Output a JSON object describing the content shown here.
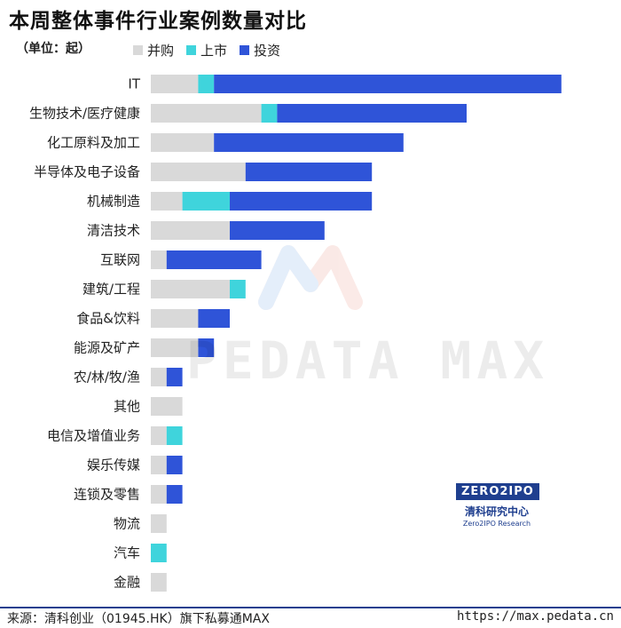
{
  "title": "本周整体事件行业案例数量对比",
  "unit_label": "（单位：起）",
  "colors": {
    "mna": "#d9d9d9",
    "ipo": "#3fd4dc",
    "investment": "#2f54d8"
  },
  "legend": [
    {
      "name": "并购",
      "color": "#d9d9d9"
    },
    {
      "name": "上市",
      "color": "#3fd4dc"
    },
    {
      "name": "投资",
      "color": "#2f54d8"
    }
  ],
  "chart_data": {
    "type": "bar",
    "orientation": "horizontal",
    "stacked": true,
    "title": "本周整体事件行业案例数量对比",
    "unit": "（单位：起）",
    "categories": [
      "IT",
      "生物技术/医疗健康",
      "化工原料及加工",
      "半导体及电子设备",
      "机械制造",
      "清洁技术",
      "互联网",
      "建筑/工程",
      "食品&饮料",
      "能源及矿产",
      "农/林/牧/渔",
      "其他",
      "电信及增值业务",
      "娱乐传媒",
      "连锁及零售",
      "物流",
      "汽车",
      "金融"
    ],
    "series": [
      {
        "name": "并购",
        "values": [
          3,
          7,
          4,
          6,
          2,
          5,
          1,
          5,
          3,
          3,
          1,
          2,
          1,
          1,
          1,
          1,
          0,
          1
        ]
      },
      {
        "name": "上市",
        "values": [
          1,
          1,
          0,
          0,
          3,
          0,
          0,
          1,
          0,
          0,
          0,
          0,
          1,
          0,
          0,
          0,
          1,
          0
        ]
      },
      {
        "name": "投资",
        "values": [
          22,
          12,
          12,
          8,
          9,
          6,
          6,
          0,
          2,
          1,
          1,
          0,
          0,
          1,
          1,
          0,
          0,
          0
        ]
      }
    ],
    "grid": false,
    "legend_position": "top"
  },
  "watermark": "PEDATA MAX",
  "logo": {
    "mark": "ZERO2IPO",
    "cn": "清科研究中心",
    "en": "Zero2IPO Research"
  },
  "footer": {
    "source": "来源：清科创业（01945.HK）旗下私募通MAX",
    "url": "https://max.pedata.cn"
  }
}
